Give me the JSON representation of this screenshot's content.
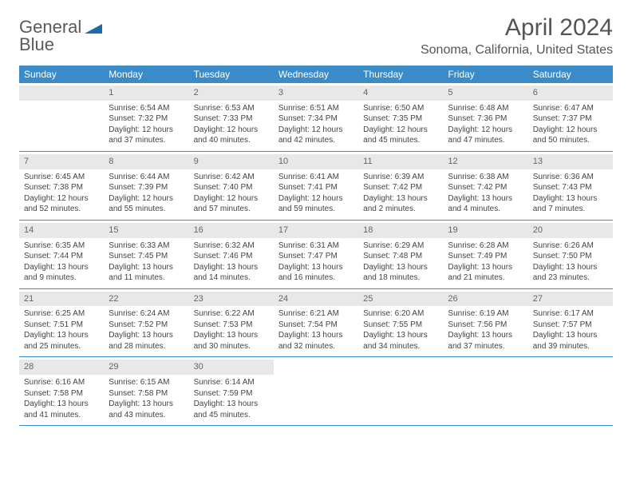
{
  "logo": {
    "line1": "General",
    "line2": "Blue",
    "gray_color": "#5a5a5a",
    "blue_color": "#2a7ab8",
    "shape_color": "#1e6aa8"
  },
  "title": "April 2024",
  "location": "Sonoma, California, United States",
  "header_bg": "#3b8bc9",
  "header_fg": "#ffffff",
  "daynum_bg": "#e8e8e8",
  "border_color": "#3b8bc9",
  "day_names": [
    "Sunday",
    "Monday",
    "Tuesday",
    "Wednesday",
    "Thursday",
    "Friday",
    "Saturday"
  ],
  "weeks": [
    [
      null,
      {
        "n": "1",
        "sr": "6:54 AM",
        "ss": "7:32 PM",
        "dl": "12 hours and 37 minutes."
      },
      {
        "n": "2",
        "sr": "6:53 AM",
        "ss": "7:33 PM",
        "dl": "12 hours and 40 minutes."
      },
      {
        "n": "3",
        "sr": "6:51 AM",
        "ss": "7:34 PM",
        "dl": "12 hours and 42 minutes."
      },
      {
        "n": "4",
        "sr": "6:50 AM",
        "ss": "7:35 PM",
        "dl": "12 hours and 45 minutes."
      },
      {
        "n": "5",
        "sr": "6:48 AM",
        "ss": "7:36 PM",
        "dl": "12 hours and 47 minutes."
      },
      {
        "n": "6",
        "sr": "6:47 AM",
        "ss": "7:37 PM",
        "dl": "12 hours and 50 minutes."
      }
    ],
    [
      {
        "n": "7",
        "sr": "6:45 AM",
        "ss": "7:38 PM",
        "dl": "12 hours and 52 minutes."
      },
      {
        "n": "8",
        "sr": "6:44 AM",
        "ss": "7:39 PM",
        "dl": "12 hours and 55 minutes."
      },
      {
        "n": "9",
        "sr": "6:42 AM",
        "ss": "7:40 PM",
        "dl": "12 hours and 57 minutes."
      },
      {
        "n": "10",
        "sr": "6:41 AM",
        "ss": "7:41 PM",
        "dl": "12 hours and 59 minutes."
      },
      {
        "n": "11",
        "sr": "6:39 AM",
        "ss": "7:42 PM",
        "dl": "13 hours and 2 minutes."
      },
      {
        "n": "12",
        "sr": "6:38 AM",
        "ss": "7:42 PM",
        "dl": "13 hours and 4 minutes."
      },
      {
        "n": "13",
        "sr": "6:36 AM",
        "ss": "7:43 PM",
        "dl": "13 hours and 7 minutes."
      }
    ],
    [
      {
        "n": "14",
        "sr": "6:35 AM",
        "ss": "7:44 PM",
        "dl": "13 hours and 9 minutes."
      },
      {
        "n": "15",
        "sr": "6:33 AM",
        "ss": "7:45 PM",
        "dl": "13 hours and 11 minutes."
      },
      {
        "n": "16",
        "sr": "6:32 AM",
        "ss": "7:46 PM",
        "dl": "13 hours and 14 minutes."
      },
      {
        "n": "17",
        "sr": "6:31 AM",
        "ss": "7:47 PM",
        "dl": "13 hours and 16 minutes."
      },
      {
        "n": "18",
        "sr": "6:29 AM",
        "ss": "7:48 PM",
        "dl": "13 hours and 18 minutes."
      },
      {
        "n": "19",
        "sr": "6:28 AM",
        "ss": "7:49 PM",
        "dl": "13 hours and 21 minutes."
      },
      {
        "n": "20",
        "sr": "6:26 AM",
        "ss": "7:50 PM",
        "dl": "13 hours and 23 minutes."
      }
    ],
    [
      {
        "n": "21",
        "sr": "6:25 AM",
        "ss": "7:51 PM",
        "dl": "13 hours and 25 minutes."
      },
      {
        "n": "22",
        "sr": "6:24 AM",
        "ss": "7:52 PM",
        "dl": "13 hours and 28 minutes."
      },
      {
        "n": "23",
        "sr": "6:22 AM",
        "ss": "7:53 PM",
        "dl": "13 hours and 30 minutes."
      },
      {
        "n": "24",
        "sr": "6:21 AM",
        "ss": "7:54 PM",
        "dl": "13 hours and 32 minutes."
      },
      {
        "n": "25",
        "sr": "6:20 AM",
        "ss": "7:55 PM",
        "dl": "13 hours and 34 minutes."
      },
      {
        "n": "26",
        "sr": "6:19 AM",
        "ss": "7:56 PM",
        "dl": "13 hours and 37 minutes."
      },
      {
        "n": "27",
        "sr": "6:17 AM",
        "ss": "7:57 PM",
        "dl": "13 hours and 39 minutes."
      }
    ],
    [
      {
        "n": "28",
        "sr": "6:16 AM",
        "ss": "7:58 PM",
        "dl": "13 hours and 41 minutes."
      },
      {
        "n": "29",
        "sr": "6:15 AM",
        "ss": "7:58 PM",
        "dl": "13 hours and 43 minutes."
      },
      {
        "n": "30",
        "sr": "6:14 AM",
        "ss": "7:59 PM",
        "dl": "13 hours and 45 minutes."
      },
      null,
      null,
      null,
      null
    ]
  ],
  "labels": {
    "sunrise": "Sunrise:",
    "sunset": "Sunset:",
    "daylight": "Daylight:"
  }
}
